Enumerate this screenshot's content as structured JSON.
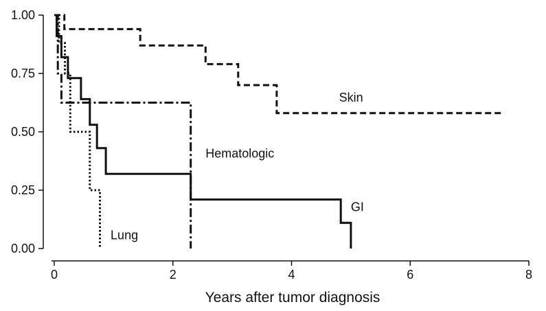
{
  "chart_data": {
    "type": "line",
    "title": "",
    "xlabel": "Years after tumor diagnosis",
    "ylabel": "",
    "xlim": [
      0,
      8
    ],
    "ylim": [
      0,
      1
    ],
    "x_ticks": [
      0,
      2,
      4,
      6,
      8
    ],
    "x_tick_labels": [
      "0",
      "2",
      "4",
      "6",
      "8"
    ],
    "y_ticks": [
      0,
      0.25,
      0.5,
      0.75,
      1.0
    ],
    "y_tick_labels": [
      "0.00",
      "0.25",
      "0.50",
      "0.75",
      "1.00"
    ],
    "grid": false,
    "legend": "none",
    "step": true,
    "series": [
      {
        "name": "Skin",
        "dash": "dashed",
        "label_pos": [
          4.8,
          0.63
        ],
        "points": [
          [
            0,
            1.0
          ],
          [
            0.17,
            1.0
          ],
          [
            0.17,
            0.94
          ],
          [
            1.45,
            0.94
          ],
          [
            1.45,
            0.87
          ],
          [
            2.55,
            0.87
          ],
          [
            2.55,
            0.79
          ],
          [
            3.1,
            0.79
          ],
          [
            3.1,
            0.7
          ],
          [
            3.75,
            0.7
          ],
          [
            3.75,
            0.58
          ],
          [
            7.55,
            0.58
          ]
        ]
      },
      {
        "name": "Hematologic",
        "dash": "dashdot",
        "label_pos": [
          2.55,
          0.39
        ],
        "points": [
          [
            0,
            1.0
          ],
          [
            0.06,
            1.0
          ],
          [
            0.06,
            0.75
          ],
          [
            0.12,
            0.75
          ],
          [
            0.12,
            0.625
          ],
          [
            2.3,
            0.625
          ],
          [
            2.3,
            0.0
          ]
        ]
      },
      {
        "name": "GI",
        "dash": "solid",
        "label_pos": [
          5.0,
          0.16
        ],
        "points": [
          [
            0,
            1.0
          ],
          [
            0.04,
            1.0
          ],
          [
            0.04,
            0.91
          ],
          [
            0.12,
            0.91
          ],
          [
            0.12,
            0.82
          ],
          [
            0.23,
            0.82
          ],
          [
            0.23,
            0.73
          ],
          [
            0.45,
            0.73
          ],
          [
            0.45,
            0.64
          ],
          [
            0.6,
            0.64
          ],
          [
            0.6,
            0.53
          ],
          [
            0.72,
            0.53
          ],
          [
            0.72,
            0.43
          ],
          [
            0.87,
            0.43
          ],
          [
            0.87,
            0.32
          ],
          [
            2.3,
            0.32
          ],
          [
            2.3,
            0.21
          ],
          [
            4.83,
            0.21
          ],
          [
            4.83,
            0.11
          ],
          [
            5.0,
            0.11
          ],
          [
            5.0,
            0.0
          ]
        ]
      },
      {
        "name": "Lung",
        "dash": "dotted",
        "label_pos": [
          0.95,
          0.04
        ],
        "points": [
          [
            0,
            1.0
          ],
          [
            0.08,
            1.0
          ],
          [
            0.08,
            0.88
          ],
          [
            0.18,
            0.88
          ],
          [
            0.18,
            0.75
          ],
          [
            0.27,
            0.75
          ],
          [
            0.27,
            0.5
          ],
          [
            0.6,
            0.5
          ],
          [
            0.6,
            0.25
          ],
          [
            0.77,
            0.25
          ],
          [
            0.77,
            0.0
          ]
        ]
      }
    ]
  }
}
